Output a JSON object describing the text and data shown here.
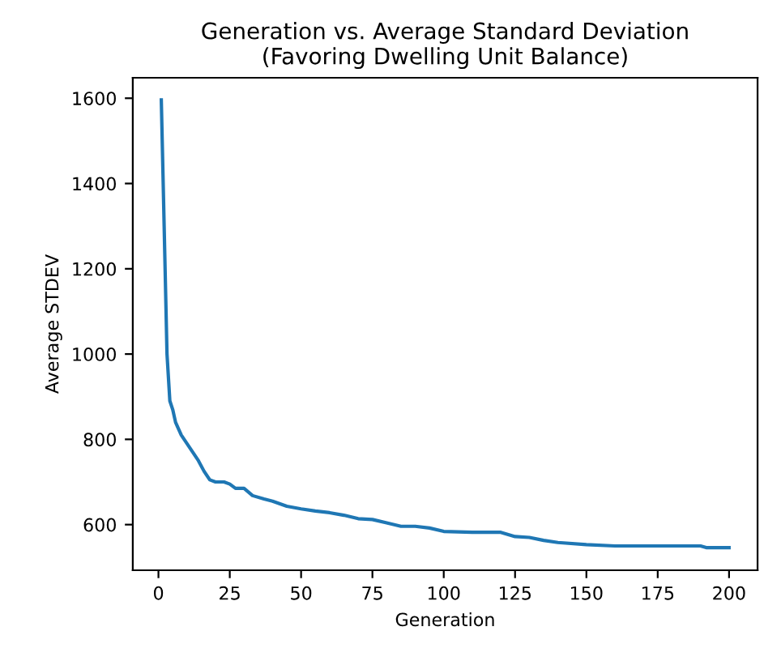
{
  "chart_data": {
    "type": "line",
    "title": "Generation vs. Average Standard Deviation\n(Favoring Dwelling Unit Balance)",
    "xlabel": "Generation",
    "ylabel": "Average STDEV",
    "x": [
      1,
      2,
      3,
      4,
      5,
      6,
      8,
      10,
      12,
      14,
      16,
      18,
      20,
      23,
      25,
      27,
      30,
      33,
      37,
      40,
      45,
      50,
      55,
      60,
      65,
      70,
      75,
      80,
      85,
      90,
      95,
      100,
      110,
      120,
      125,
      130,
      135,
      140,
      150,
      160,
      190,
      192,
      200
    ],
    "series": [
      {
        "color": "#1f77b4",
        "values": [
          1596,
          1300,
          1000,
          890,
          870,
          840,
          810,
          790,
          770,
          750,
          725,
          705,
          700,
          700,
          695,
          685,
          685,
          668,
          660,
          655,
          643,
          637,
          632,
          628,
          622,
          614,
          612,
          604,
          596,
          596,
          592,
          584,
          582,
          582,
          572,
          570,
          563,
          558,
          553,
          550,
          550,
          546,
          546
        ]
      }
    ],
    "xlim": [
      -9,
      210
    ],
    "ylim": [
      493,
      1648
    ],
    "xticks": [
      0,
      25,
      50,
      75,
      100,
      125,
      150,
      175,
      200
    ],
    "yticks": [
      600,
      800,
      1000,
      1200,
      1400,
      1600
    ],
    "grid": false
  }
}
